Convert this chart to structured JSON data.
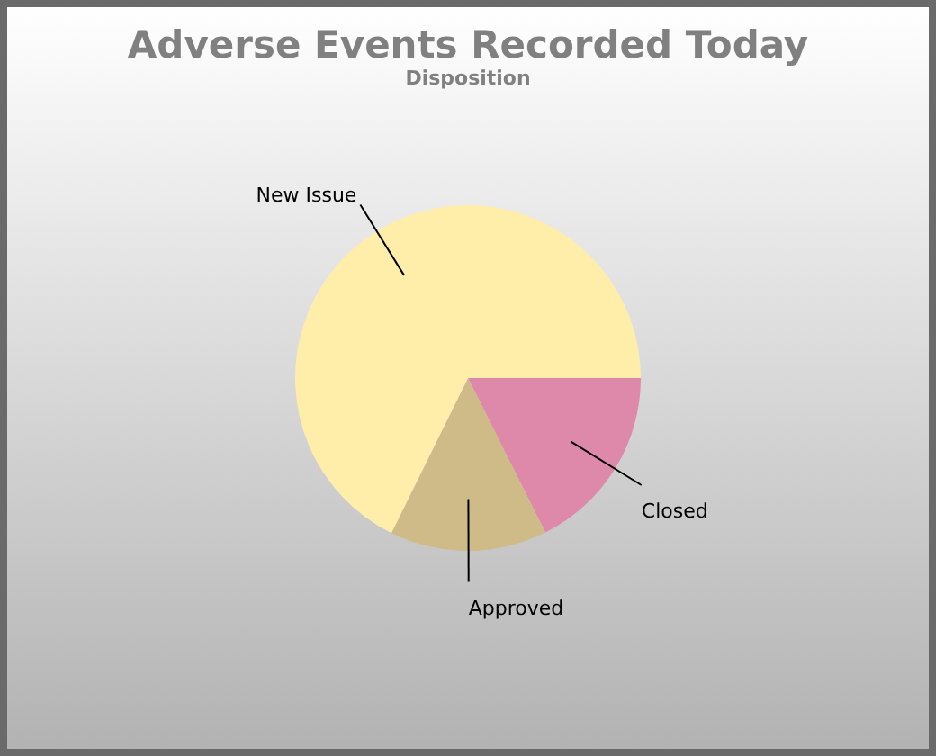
{
  "chart_data": {
    "type": "pie",
    "title": "Adverse Events Recorded Today",
    "subtitle": "Disposition",
    "categories": [
      "Closed",
      "Approved",
      "New Issue"
    ],
    "values": [
      17.6,
      14.7,
      67.7
    ],
    "colors": [
      "#de88aa",
      "#cebb88",
      "#ffedaa"
    ]
  }
}
